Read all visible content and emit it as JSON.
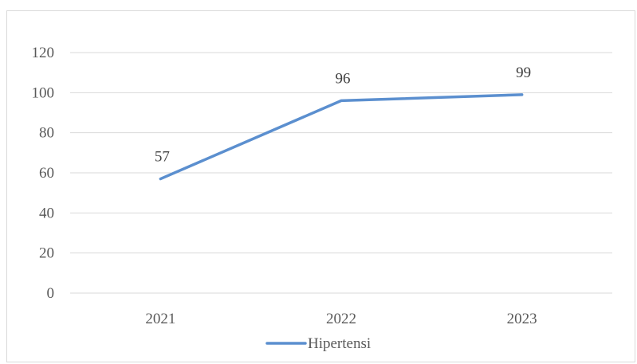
{
  "chart_data": {
    "type": "line",
    "title": "",
    "xlabel": "",
    "ylabel": "",
    "categories": [
      "2021",
      "2022",
      "2023"
    ],
    "series": [
      {
        "name": "Hipertensi",
        "values": [
          57,
          96,
          99
        ],
        "color": "#5b8fcf"
      }
    ],
    "data_labels": [
      "57",
      "96",
      "99"
    ],
    "ylim": [
      0,
      120
    ],
    "yticks": [
      "0",
      "20",
      "40",
      "60",
      "80",
      "100",
      "120"
    ],
    "grid": true,
    "gridline_color": "#d9d9d9",
    "legend_position": "bottom"
  }
}
